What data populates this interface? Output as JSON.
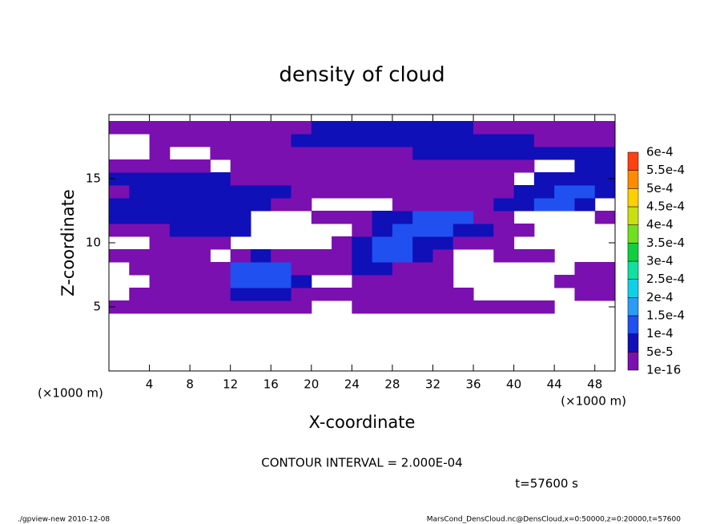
{
  "chart_data": {
    "type": "contour",
    "title": "density of cloud",
    "xlabel": "X-coordinate",
    "ylabel": "Z-coordinate",
    "xunit": "(×1000 m)",
    "yunit": "(×1000 m)",
    "annotation": "CONTOUR INTERVAL = 2.000E-04",
    "time": "t=57600 s",
    "footer_left": "./gpview-new  2010-12-08",
    "footer_right": "MarsCond_DensCloud.nc@DensCloud,x=0:50000,z=0:20000,t=57600",
    "xlim": [
      0,
      50
    ],
    "xticks": [
      4,
      8,
      12,
      16,
      20,
      24,
      28,
      32,
      36,
      40,
      44,
      48
    ],
    "ylim": [
      0,
      20
    ],
    "yticks": [
      5,
      10,
      15
    ],
    "x": [
      1,
      3,
      5,
      7,
      9,
      11,
      13,
      15,
      17,
      19,
      21,
      23,
      25,
      27,
      29,
      31,
      33,
      35,
      37,
      39,
      41,
      43,
      45,
      47,
      49
    ],
    "z": [
      5,
      6,
      7,
      8,
      9,
      10,
      11,
      12,
      13,
      14,
      15,
      16,
      17,
      18,
      19
    ],
    "values": [
      [
        3e-05,
        3e-05,
        3e-05,
        3e-05,
        3e-05,
        3e-05,
        3e-05,
        3e-05,
        3e-05,
        3e-05,
        null,
        null,
        3e-05,
        3e-05,
        3e-05,
        3e-05,
        3e-05,
        3e-05,
        3e-05,
        3e-05,
        3e-05,
        3e-05,
        null,
        null,
        null
      ],
      [
        null,
        3e-05,
        3e-05,
        3e-05,
        3e-05,
        3e-05,
        7e-05,
        7e-05,
        7e-05,
        3e-05,
        3e-05,
        3e-05,
        3e-05,
        3e-05,
        3e-05,
        3e-05,
        3e-05,
        3e-05,
        null,
        null,
        null,
        null,
        null,
        3e-05,
        3e-05
      ],
      [
        null,
        null,
        3e-05,
        3e-05,
        3e-05,
        3e-05,
        0.00012,
        0.00012,
        0.00012,
        7e-05,
        null,
        null,
        3e-05,
        3e-05,
        3e-05,
        3e-05,
        3e-05,
        null,
        null,
        null,
        null,
        null,
        3e-05,
        3e-05,
        3e-05
      ],
      [
        null,
        3e-05,
        3e-05,
        3e-05,
        3e-05,
        3e-05,
        0.00012,
        0.00012,
        0.00012,
        3e-05,
        3e-05,
        3e-05,
        7e-05,
        7e-05,
        3e-05,
        3e-05,
        3e-05,
        null,
        null,
        null,
        null,
        null,
        null,
        3e-05,
        3e-05
      ],
      [
        3e-05,
        3e-05,
        3e-05,
        3e-05,
        3e-05,
        null,
        3e-05,
        7e-05,
        3e-05,
        3e-05,
        3e-05,
        3e-05,
        7e-05,
        0.00012,
        0.00012,
        7e-05,
        3e-05,
        null,
        null,
        3e-05,
        3e-05,
        3e-05,
        null,
        null,
        null
      ],
      [
        null,
        null,
        3e-05,
        3e-05,
        3e-05,
        3e-05,
        null,
        null,
        null,
        null,
        null,
        3e-05,
        7e-05,
        0.00012,
        0.00012,
        7e-05,
        7e-05,
        3e-05,
        3e-05,
        3e-05,
        null,
        null,
        null,
        null,
        null
      ],
      [
        3e-05,
        3e-05,
        3e-05,
        7e-05,
        7e-05,
        7e-05,
        7e-05,
        null,
        null,
        null,
        null,
        null,
        3e-05,
        7e-05,
        0.00012,
        0.00012,
        0.00012,
        7e-05,
        7e-05,
        3e-05,
        3e-05,
        null,
        null,
        null,
        null
      ],
      [
        7e-05,
        7e-05,
        7e-05,
        7e-05,
        7e-05,
        7e-05,
        7e-05,
        null,
        null,
        null,
        3e-05,
        3e-05,
        3e-05,
        7e-05,
        7e-05,
        0.00012,
        0.00012,
        0.00012,
        3e-05,
        3e-05,
        null,
        null,
        null,
        null,
        3e-05
      ],
      [
        7e-05,
        7e-05,
        7e-05,
        7e-05,
        7e-05,
        7e-05,
        7e-05,
        7e-05,
        3e-05,
        3e-05,
        null,
        null,
        null,
        null,
        3e-05,
        3e-05,
        3e-05,
        3e-05,
        3e-05,
        7e-05,
        7e-05,
        0.00012,
        0.00012,
        7e-05,
        null
      ],
      [
        3e-05,
        7e-05,
        7e-05,
        7e-05,
        7e-05,
        7e-05,
        7e-05,
        7e-05,
        7e-05,
        3e-05,
        3e-05,
        3e-05,
        3e-05,
        3e-05,
        3e-05,
        3e-05,
        3e-05,
        3e-05,
        3e-05,
        3e-05,
        7e-05,
        7e-05,
        0.00012,
        0.00012,
        7e-05
      ],
      [
        7e-05,
        7e-05,
        7e-05,
        7e-05,
        7e-05,
        7e-05,
        3e-05,
        3e-05,
        3e-05,
        3e-05,
        3e-05,
        3e-05,
        3e-05,
        3e-05,
        3e-05,
        3e-05,
        3e-05,
        3e-05,
        3e-05,
        3e-05,
        null,
        7e-05,
        7e-05,
        7e-05,
        7e-05
      ],
      [
        3e-05,
        3e-05,
        3e-05,
        3e-05,
        3e-05,
        null,
        3e-05,
        3e-05,
        3e-05,
        3e-05,
        3e-05,
        3e-05,
        3e-05,
        3e-05,
        3e-05,
        3e-05,
        3e-05,
        3e-05,
        3e-05,
        3e-05,
        3e-05,
        null,
        null,
        7e-05,
        7e-05
      ],
      [
        null,
        null,
        3e-05,
        null,
        null,
        3e-05,
        3e-05,
        3e-05,
        3e-05,
        3e-05,
        3e-05,
        3e-05,
        3e-05,
        3e-05,
        3e-05,
        7e-05,
        7e-05,
        7e-05,
        7e-05,
        7e-05,
        7e-05,
        7e-05,
        7e-05,
        7e-05,
        7e-05
      ],
      [
        null,
        null,
        3e-05,
        3e-05,
        3e-05,
        3e-05,
        3e-05,
        3e-05,
        3e-05,
        7e-05,
        7e-05,
        7e-05,
        7e-05,
        7e-05,
        7e-05,
        7e-05,
        7e-05,
        7e-05,
        7e-05,
        7e-05,
        7e-05,
        3e-05,
        3e-05,
        3e-05,
        3e-05
      ],
      [
        3e-05,
        3e-05,
        3e-05,
        3e-05,
        3e-05,
        3e-05,
        3e-05,
        3e-05,
        3e-05,
        3e-05,
        7e-05,
        7e-05,
        7e-05,
        7e-05,
        7e-05,
        7e-05,
        7e-05,
        7e-05,
        3e-05,
        3e-05,
        3e-05,
        3e-05,
        3e-05,
        3e-05,
        3e-05
      ]
    ],
    "levels": [
      {
        "value": 1e-16,
        "label": "1e-16"
      },
      {
        "value": 5e-05,
        "label": "5e-5"
      },
      {
        "value": 0.0001,
        "label": "1e-4"
      },
      {
        "value": 0.00015,
        "label": "1.5e-4"
      },
      {
        "value": 0.0002,
        "label": "2e-4"
      },
      {
        "value": 0.00025,
        "label": "2.5e-4"
      },
      {
        "value": 0.0003,
        "label": "3e-4"
      },
      {
        "value": 0.00035,
        "label": "3.5e-4"
      },
      {
        "value": 0.0004,
        "label": "4e-4"
      },
      {
        "value": 0.00045,
        "label": "4.5e-4"
      },
      {
        "value": 0.0005,
        "label": "5e-4"
      },
      {
        "value": 0.00055,
        "label": "5.5e-4"
      },
      {
        "value": 0.0006,
        "label": "6e-4"
      }
    ],
    "colors": [
      "#7a10b0",
      "#1010b8",
      "#2050f0",
      "#2a9cf8",
      "#10d0e8",
      "#10e0a0",
      "#10d040",
      "#70e020",
      "#c8e010",
      "#ffd000",
      "#ff8c00",
      "#ff4010",
      "#ff8080"
    ]
  }
}
